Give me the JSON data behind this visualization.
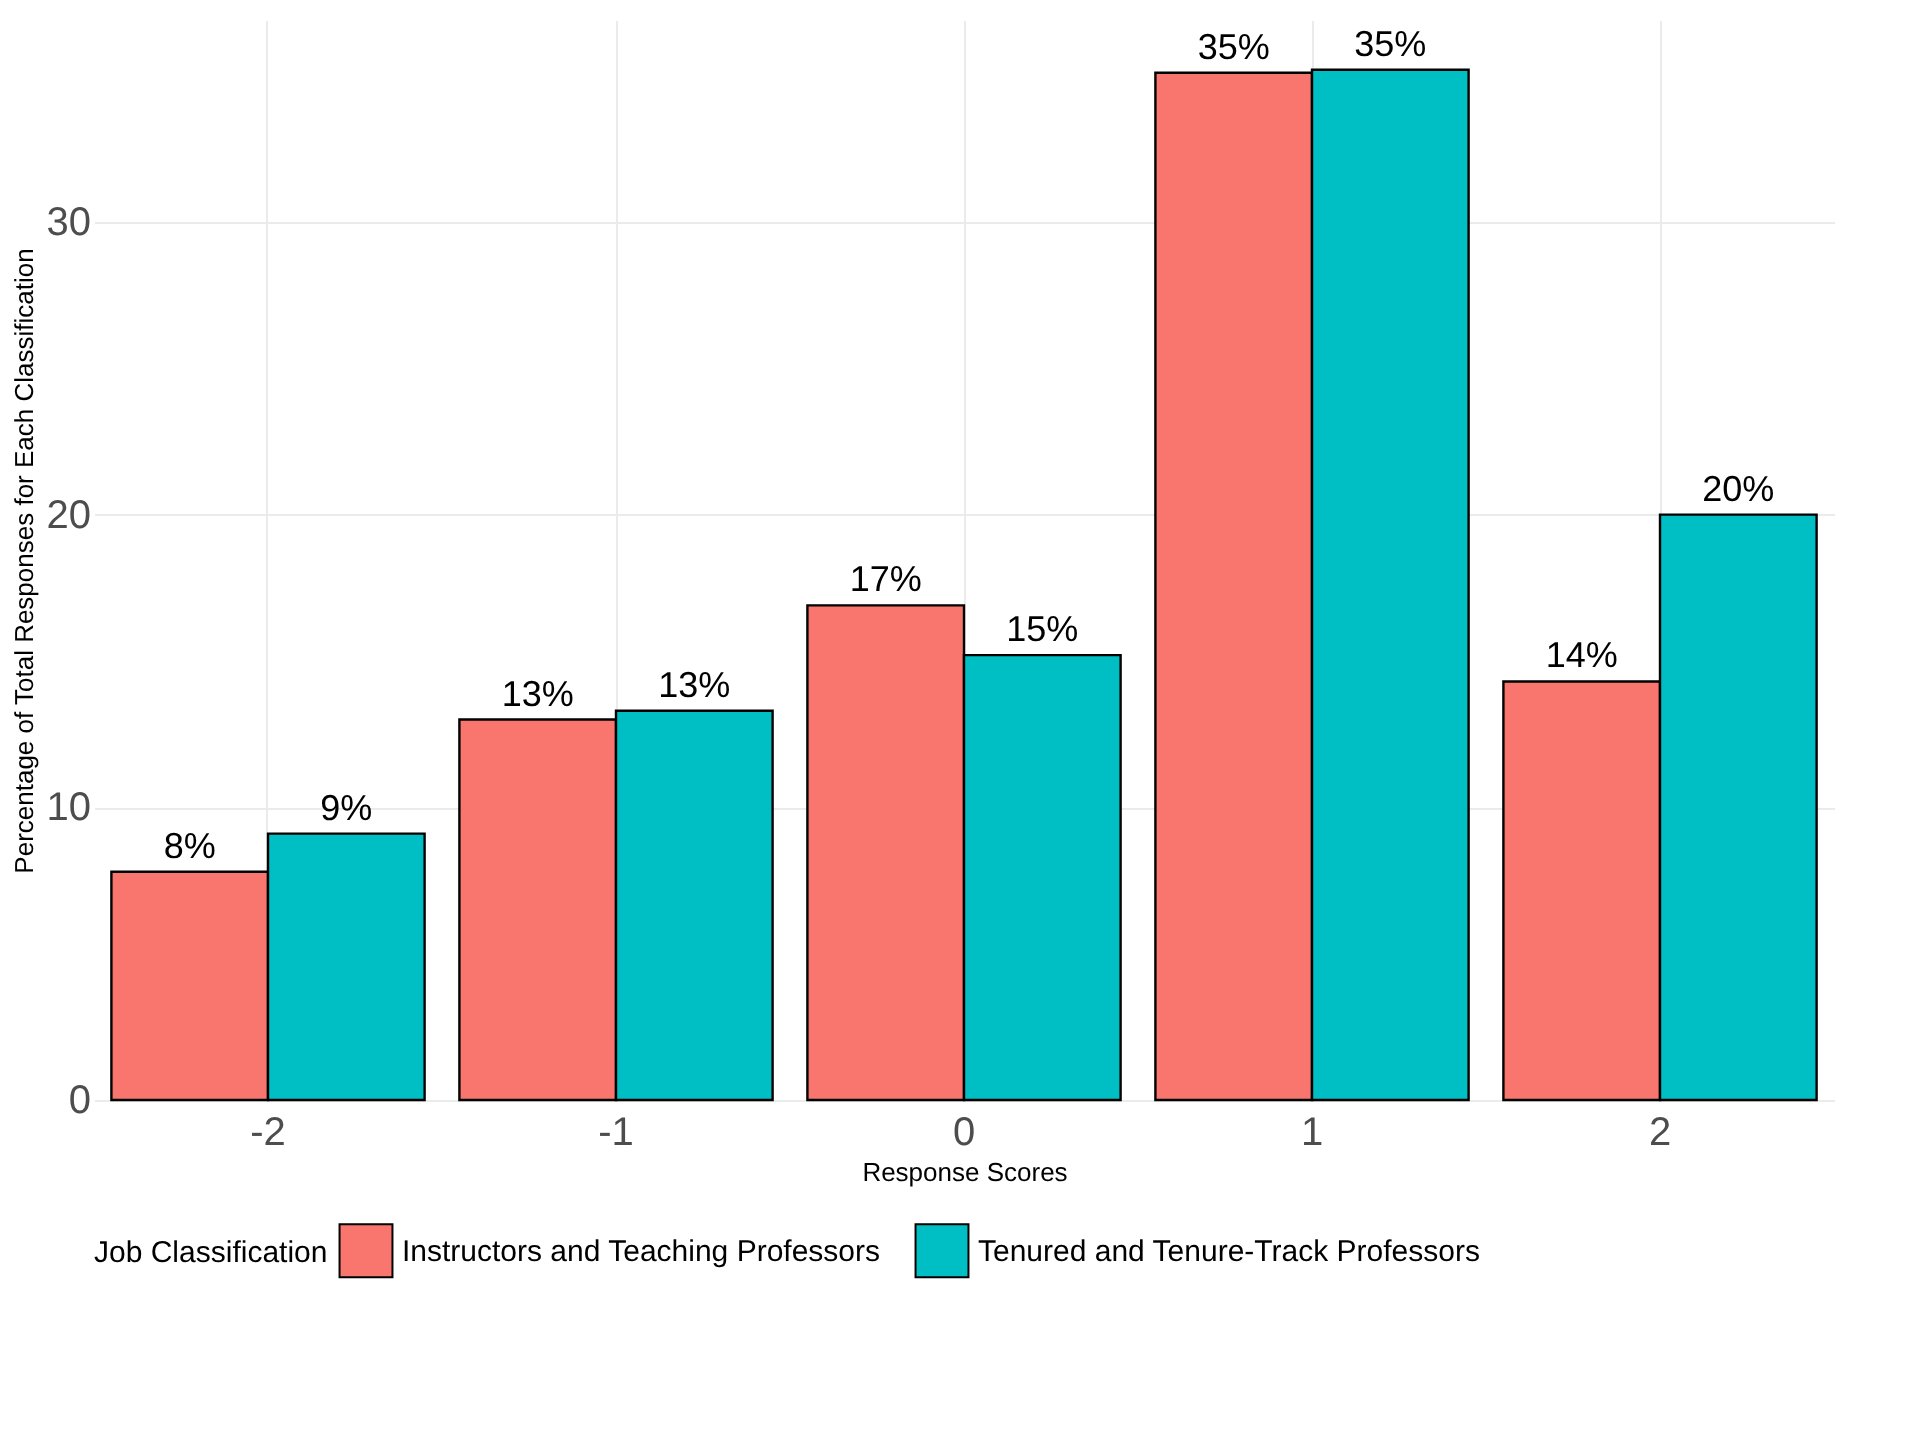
{
  "chart_data": {
    "type": "bar",
    "xlabel": "Response Scores",
    "ylabel": "Percentage of Total Responses for Each Classification",
    "legend_title": "Job Classification",
    "categories": [
      "-2",
      "-1",
      "0",
      "1",
      "2"
    ],
    "series": [
      {
        "name": "Instructors and Teaching Professors",
        "color": "#f8766d",
        "values": [
          7.8,
          13.0,
          16.9,
          35.1,
          14.3
        ],
        "value_labels": [
          "8%",
          "13%",
          "17%",
          "35%",
          "14%"
        ]
      },
      {
        "name": "Tenured and Tenure-Track Professors",
        "color": "#00bfc4",
        "values": [
          9.1,
          13.3,
          15.2,
          35.2,
          20.0
        ],
        "value_labels": [
          "9%",
          "13%",
          "15%",
          "35%",
          "20%"
        ]
      }
    ],
    "ylim": [
      0,
      36.9
    ],
    "yticks": [
      0,
      10,
      20,
      30
    ],
    "grid": true,
    "legend": "bottom"
  }
}
